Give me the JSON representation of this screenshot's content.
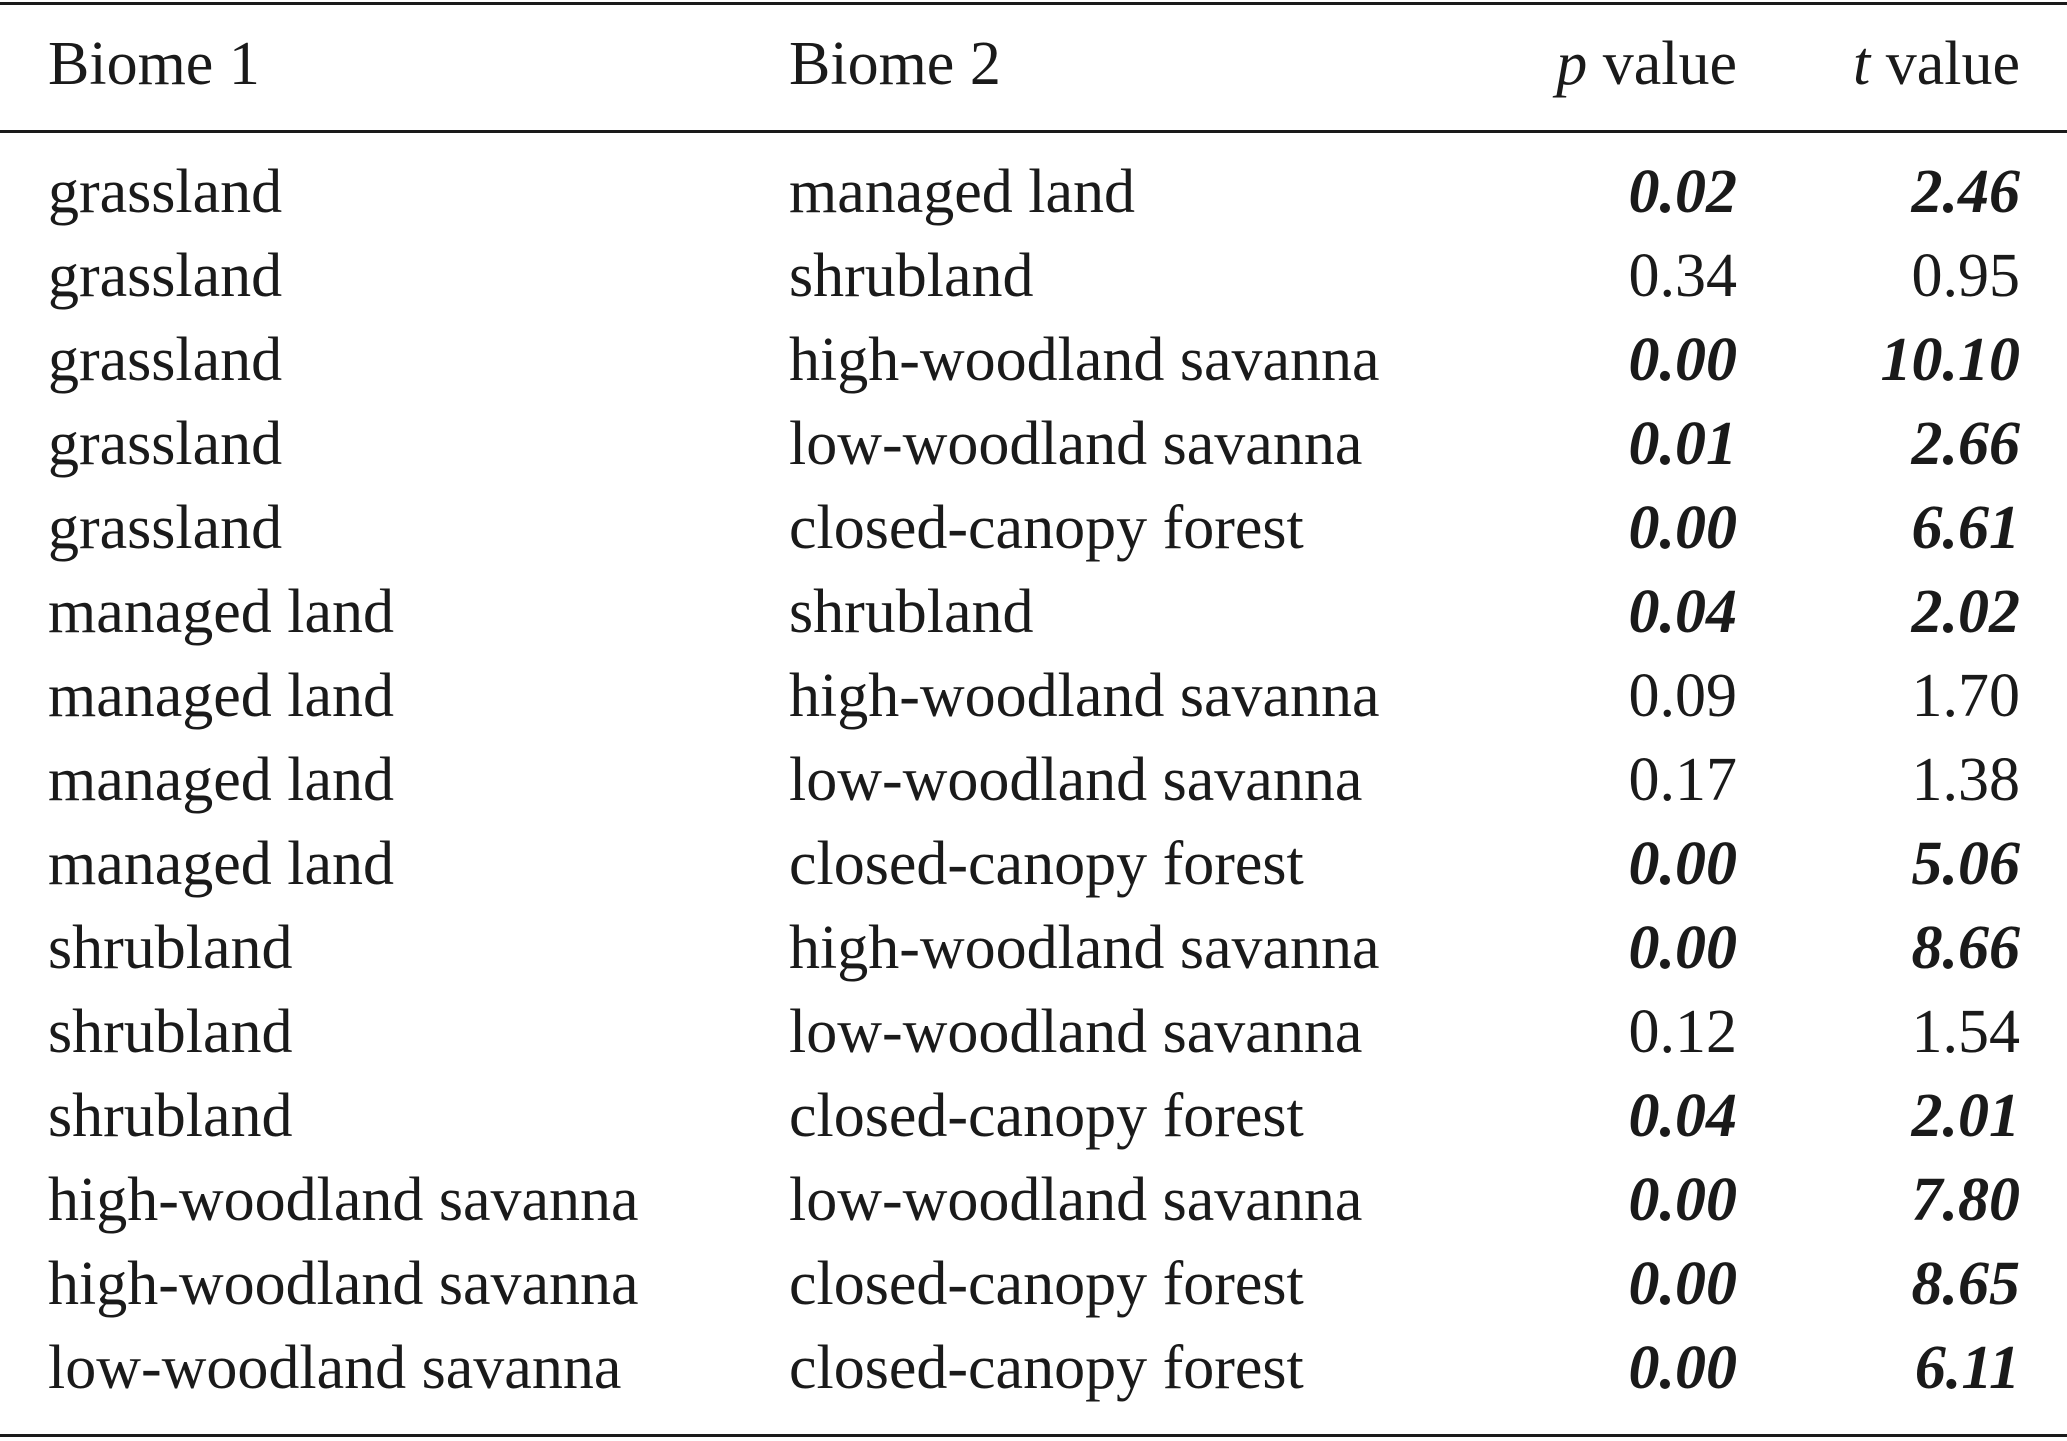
{
  "table": {
    "headers": {
      "biome1": "Biome 1",
      "biome2": "Biome 2",
      "p_var": "p",
      "p_word": " value",
      "t_var": "t",
      "t_word": " value"
    },
    "rows": [
      {
        "biome1": "grassland",
        "biome2": "managed land",
        "p": "0.02",
        "t": "2.46",
        "significant": true
      },
      {
        "biome1": "grassland",
        "biome2": "shrubland",
        "p": "0.34",
        "t": "0.95",
        "significant": false
      },
      {
        "biome1": "grassland",
        "biome2": "high-woodland savanna",
        "p": "0.00",
        "t": "10.10",
        "significant": true
      },
      {
        "biome1": "grassland",
        "biome2": "low-woodland savanna",
        "p": "0.01",
        "t": "2.66",
        "significant": true
      },
      {
        "biome1": "grassland",
        "biome2": "closed-canopy forest",
        "p": "0.00",
        "t": "6.61",
        "significant": true
      },
      {
        "biome1": "managed land",
        "biome2": "shrubland",
        "p": "0.04",
        "t": "2.02",
        "significant": true
      },
      {
        "biome1": "managed land",
        "biome2": "high-woodland savanna",
        "p": "0.09",
        "t": "1.70",
        "significant": false
      },
      {
        "biome1": "managed land",
        "biome2": "low-woodland savanna",
        "p": "0.17",
        "t": "1.38",
        "significant": false
      },
      {
        "biome1": "managed land",
        "biome2": "closed-canopy forest",
        "p": "0.00",
        "t": "5.06",
        "significant": true
      },
      {
        "biome1": "shrubland",
        "biome2": "high-woodland savanna",
        "p": "0.00",
        "t": "8.66",
        "significant": true
      },
      {
        "biome1": "shrubland",
        "biome2": "low-woodland savanna",
        "p": "0.12",
        "t": "1.54",
        "significant": false
      },
      {
        "biome1": "shrubland",
        "biome2": "closed-canopy forest",
        "p": "0.04",
        "t": "2.01",
        "significant": true
      },
      {
        "biome1": "high-woodland savanna",
        "biome2": "low-woodland savanna",
        "p": "0.00",
        "t": "7.80",
        "significant": true
      },
      {
        "biome1": "high-woodland savanna",
        "biome2": "closed-canopy forest",
        "p": "0.00",
        "t": "8.65",
        "significant": true
      },
      {
        "biome1": "low-woodland savanna",
        "biome2": "closed-canopy forest",
        "p": "0.00",
        "t": "6.11",
        "significant": true
      }
    ]
  },
  "colors": {
    "text": "#1a1a1a",
    "background": "#ffffff",
    "rule": "#1a1a1a"
  }
}
